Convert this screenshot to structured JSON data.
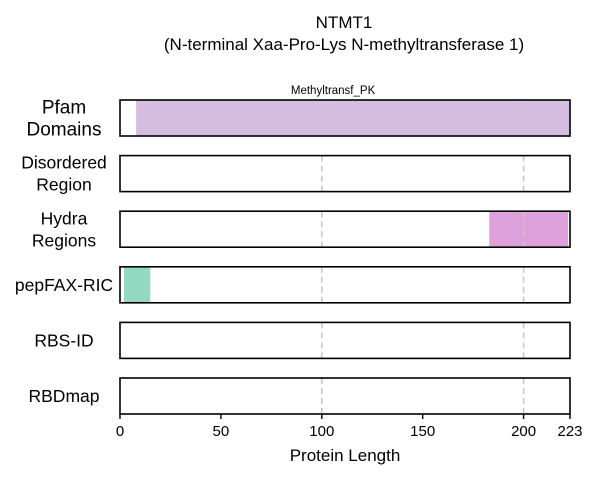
{
  "chart_data": {
    "type": "bar",
    "title": "NTMT1",
    "subtitle": "(N-terminal Xaa-Pro-Lys N-methyltransferase 1)",
    "xlabel": "Protein Length",
    "xlim": [
      0,
      223
    ],
    "xticks": [
      0,
      50,
      100,
      150,
      200,
      223
    ],
    "gridlines_x": [
      100,
      200
    ],
    "grid": "vertical dashed at 100 and 200",
    "tracks": [
      {
        "name": "Pfam Domains",
        "label_lines": [
          "Pfam",
          "Domains"
        ],
        "segments": [
          {
            "start": 8,
            "end": 223,
            "label": "Methyltransf_PK",
            "color": "#d4bde0"
          }
        ]
      },
      {
        "name": "Disordered Region",
        "label_lines": [
          "Disordered",
          "Region"
        ],
        "segments": []
      },
      {
        "name": "Hydra Regions",
        "label_lines": [
          "Hydra",
          "Regions"
        ],
        "segments": [
          {
            "start": 183,
            "end": 222,
            "label": "",
            "color": "#dda0da"
          }
        ]
      },
      {
        "name": "pepFAX-RIC",
        "label_lines": [
          "pepFAX-RIC"
        ],
        "segments": [
          {
            "start": 2,
            "end": 15,
            "label": "",
            "color": "#93d8c0"
          }
        ]
      },
      {
        "name": "RBS-ID",
        "label_lines": [
          "RBS-ID"
        ],
        "segments": []
      },
      {
        "name": "RBDmap",
        "label_lines": [
          "RBDmap"
        ],
        "segments": []
      }
    ]
  }
}
